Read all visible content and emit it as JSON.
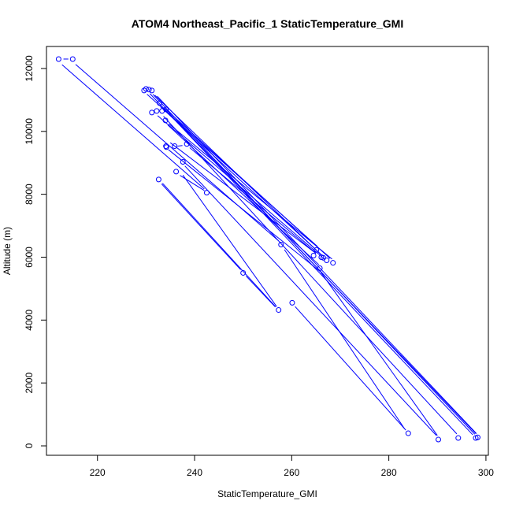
{
  "chart_data": {
    "type": "scatter",
    "title": "ATOM4 Northeast_Pacific_1 StaticTemperature_GMI",
    "xlabel": "StaticTemperature_GMI",
    "ylabel": "Altitude (m)",
    "xlim": [
      209.5,
      300.5
    ],
    "ylim": [
      -300,
      12700
    ],
    "xticks": [
      220,
      240,
      260,
      280,
      300
    ],
    "yticks": [
      0,
      2000,
      4000,
      6000,
      8000,
      10000,
      12000
    ],
    "grid": false,
    "color": "#0000ff",
    "points": [
      {
        "x": 212.0,
        "y": 12300
      },
      {
        "x": 214.9,
        "y": 12300
      },
      {
        "x": 229.6,
        "y": 11300
      },
      {
        "x": 230.0,
        "y": 11350
      },
      {
        "x": 230.6,
        "y": 11330
      },
      {
        "x": 231.2,
        "y": 11300
      },
      {
        "x": 232.8,
        "y": 10900
      },
      {
        "x": 233.3,
        "y": 10650
      },
      {
        "x": 232.2,
        "y": 10650
      },
      {
        "x": 234.1,
        "y": 10700
      },
      {
        "x": 231.2,
        "y": 10600
      },
      {
        "x": 234.0,
        "y": 10350
      },
      {
        "x": 234.1,
        "y": 9530
      },
      {
        "x": 234.2,
        "y": 9500
      },
      {
        "x": 235.9,
        "y": 9530
      },
      {
        "x": 238.4,
        "y": 9600
      },
      {
        "x": 237.6,
        "y": 9030
      },
      {
        "x": 236.2,
        "y": 8720
      },
      {
        "x": 232.6,
        "y": 8470
      },
      {
        "x": 242.5,
        "y": 8050
      },
      {
        "x": 257.8,
        "y": 6400
      },
      {
        "x": 265.1,
        "y": 6230
      },
      {
        "x": 264.5,
        "y": 6050
      },
      {
        "x": 266.1,
        "y": 6000
      },
      {
        "x": 266.5,
        "y": 5980
      },
      {
        "x": 267.2,
        "y": 5900
      },
      {
        "x": 268.5,
        "y": 5820
      },
      {
        "x": 265.8,
        "y": 5650
      },
      {
        "x": 250.0,
        "y": 5500
      },
      {
        "x": 260.1,
        "y": 4550
      },
      {
        "x": 257.3,
        "y": 4320
      },
      {
        "x": 284.0,
        "y": 400
      },
      {
        "x": 290.2,
        "y": 200
      },
      {
        "x": 294.3,
        "y": 250
      },
      {
        "x": 297.9,
        "y": 250
      },
      {
        "x": 298.3,
        "y": 270
      }
    ],
    "segments": [
      {
        "x1": 213.0,
        "y1": 12300,
        "x2": 214.0,
        "y2": 12300
      },
      {
        "x1": 212.7,
        "y1": 12120,
        "x2": 242.0,
        "y2": 8170
      },
      {
        "x1": 215.5,
        "y1": 12130,
        "x2": 257.3,
        "y2": 6520
      },
      {
        "x1": 258.5,
        "y1": 6240,
        "x2": 283.3,
        "y2": 530
      },
      {
        "x1": 230.2,
        "y1": 11180,
        "x2": 265.3,
        "y2": 6340
      },
      {
        "x1": 230.8,
        "y1": 11200,
        "x2": 297.3,
        "y2": 350
      },
      {
        "x1": 231.4,
        "y1": 11180,
        "x2": 297.7,
        "y2": 370
      },
      {
        "x1": 231.8,
        "y1": 11150,
        "x2": 265.9,
        "y2": 6100
      },
      {
        "x1": 232.3,
        "y1": 11120,
        "x2": 298.0,
        "y2": 400
      },
      {
        "x1": 233.0,
        "y1": 10780,
        "x2": 266.3,
        "y2": 6050
      },
      {
        "x1": 233.8,
        "y1": 10740,
        "x2": 267.9,
        "y2": 5960
      },
      {
        "x1": 234.6,
        "y1": 10600,
        "x2": 298.0,
        "y2": 380
      },
      {
        "x1": 232.4,
        "y1": 10500,
        "x2": 266.9,
        "y2": 5920
      },
      {
        "x1": 233.6,
        "y1": 10480,
        "x2": 294.0,
        "y2": 380
      },
      {
        "x1": 234.5,
        "y1": 10200,
        "x2": 265.6,
        "y2": 5760
      },
      {
        "x1": 234.7,
        "y1": 10240,
        "x2": 268.3,
        "y2": 5940
      },
      {
        "x1": 235.0,
        "y1": 9640,
        "x2": 265.0,
        "y2": 6120
      },
      {
        "x1": 234.6,
        "y1": 9420,
        "x2": 265.9,
        "y2": 5540
      },
      {
        "x1": 236.5,
        "y1": 9530,
        "x2": 237.5,
        "y2": 9550
      },
      {
        "x1": 239.0,
        "y1": 9480,
        "x2": 264.8,
        "y2": 6150
      },
      {
        "x1": 238.0,
        "y1": 8900,
        "x2": 289.8,
        "y2": 330
      },
      {
        "x1": 237.0,
        "y1": 8600,
        "x2": 242.0,
        "y2": 8120
      },
      {
        "x1": 237.6,
        "y1": 8610,
        "x2": 256.9,
        "y2": 4430
      },
      {
        "x1": 233.2,
        "y1": 8330,
        "x2": 249.5,
        "y2": 5600
      },
      {
        "x1": 250.6,
        "y1": 5400,
        "x2": 256.6,
        "y2": 4420
      },
      {
        "x1": 233.4,
        "y1": 8350,
        "x2": 256.7,
        "y2": 4420
      },
      {
        "x1": 266.0,
        "y1": 5520,
        "x2": 290.0,
        "y2": 330
      },
      {
        "x1": 260.7,
        "y1": 4430,
        "x2": 283.5,
        "y2": 500
      }
    ]
  }
}
